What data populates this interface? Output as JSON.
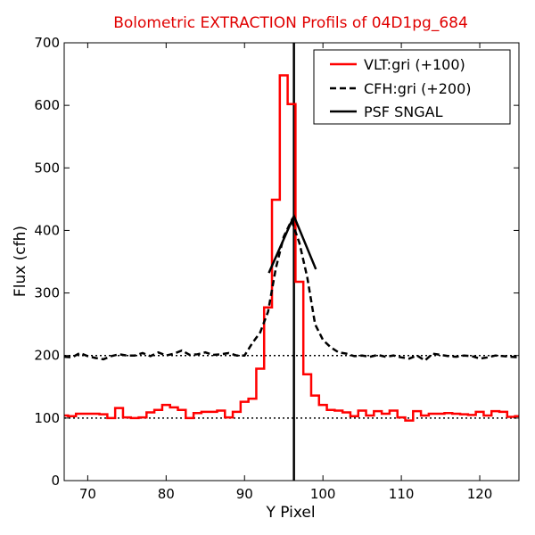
{
  "chart_data": {
    "type": "line",
    "title": "Bolometric EXTRACTION Profils of 04D1pg_684",
    "xlabel": "Y Pixel",
    "ylabel": "Flux (cfh)",
    "xlim": [
      67,
      125
    ],
    "ylim": [
      0,
      700
    ],
    "xticks": [
      70,
      80,
      90,
      100,
      110,
      120
    ],
    "yticks": [
      0,
      100,
      200,
      300,
      400,
      500,
      600,
      700
    ],
    "grid": false,
    "legend_position": "top-right",
    "colors": {
      "vlt": "#ff0000",
      "cfh": "#000000",
      "psf": "#000000",
      "title": "#e00000"
    },
    "series": [
      {
        "name": "VLT:gri (+100)",
        "style": "steps",
        "color": "#ff0000",
        "x": [
          67,
          68,
          69,
          70,
          71,
          72,
          73,
          74,
          75,
          76,
          77,
          78,
          79,
          80,
          81,
          82,
          83,
          84,
          85,
          86,
          87,
          88,
          89,
          90,
          91,
          92,
          93,
          94,
          95,
          96,
          97,
          98,
          99,
          100,
          101,
          102,
          103,
          104,
          105,
          106,
          107,
          108,
          109,
          110,
          111,
          112,
          113,
          114,
          115,
          116,
          117,
          118,
          119,
          120,
          121,
          122,
          123,
          124,
          125
        ],
        "y": [
          104,
          103,
          107,
          107,
          107,
          106,
          100,
          116,
          101,
          100,
          101,
          109,
          113,
          121,
          117,
          113,
          100,
          108,
          110,
          110,
          112,
          101,
          110,
          126,
          131,
          179,
          277,
          449,
          648,
          602,
          318,
          170,
          136,
          121,
          113,
          112,
          109,
          103,
          112,
          104,
          111,
          107,
          112,
          101,
          96,
          111,
          104,
          107,
          107,
          108,
          107,
          106,
          105,
          110,
          104,
          111,
          110,
          102,
          103
        ]
      },
      {
        "name": "CFH:gri (+200)",
        "style": "dashed",
        "color": "#000000",
        "x": [
          67,
          68,
          69,
          70,
          71,
          72,
          73,
          74,
          75,
          76,
          77,
          78,
          79,
          80,
          81,
          82,
          83,
          84,
          85,
          86,
          87,
          88,
          89,
          90,
          91,
          92,
          93,
          94,
          95,
          96,
          97,
          98,
          99,
          100,
          101,
          102,
          103,
          104,
          105,
          106,
          107,
          108,
          109,
          110,
          111,
          112,
          113,
          114,
          115,
          116,
          117,
          118,
          119,
          120,
          121,
          122,
          123,
          124,
          125
        ],
        "y": [
          198,
          197,
          204,
          199,
          196,
          194,
          199,
          202,
          200,
          200,
          204,
          199,
          205,
          200,
          203,
          208,
          201,
          202,
          205,
          201,
          202,
          204,
          200,
          200,
          220,
          237,
          270,
          340,
          390,
          416,
          380,
          325,
          250,
          225,
          213,
          205,
          203,
          199,
          200,
          198,
          201,
          198,
          200,
          197,
          195,
          200,
          192,
          203,
          201,
          199,
          198,
          200,
          199,
          195,
          197,
          200,
          199,
          198,
          197
        ]
      },
      {
        "name": "PSF SNGAL",
        "style": "solid",
        "color": "#000000",
        "x": [
          93.1,
          96.3,
          99.1
        ],
        "y": [
          332,
          423,
          338
        ]
      }
    ],
    "reference_lines": [
      {
        "axis": "y",
        "value": 100,
        "style": "dotted"
      },
      {
        "axis": "y",
        "value": 200,
        "style": "dotted"
      },
      {
        "axis": "x",
        "value": 96.3,
        "style": "solid"
      }
    ]
  }
}
